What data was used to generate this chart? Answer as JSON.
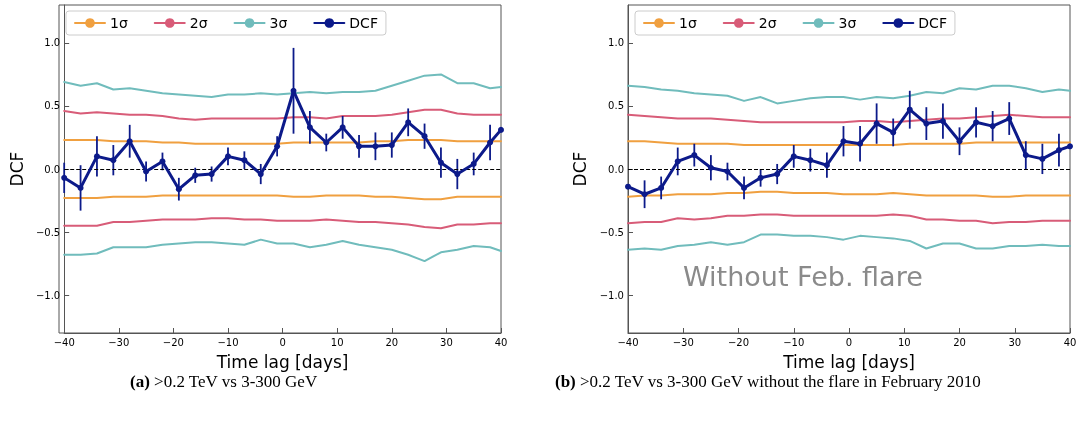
{
  "chart_data": [
    {
      "type": "line",
      "xlabel": "Time lag [days]",
      "ylabel": "DCF",
      "xlim": [
        -40,
        40
      ],
      "ylim": [
        -1.3,
        1.3
      ],
      "xticks": [
        {
          "value": -40,
          "label": "−40"
        },
        {
          "value": -30,
          "label": "−30"
        },
        {
          "value": -20,
          "label": "−20"
        },
        {
          "value": -10,
          "label": "−10"
        },
        0,
        10,
        20,
        30,
        40
      ],
      "yticks": [
        {
          "value": -1,
          "label": "−1.0"
        },
        {
          "value": -0.5,
          "label": "−0.5"
        },
        {
          "value": 0,
          "label": "0.0"
        },
        {
          "value": 0.5,
          "label": "0.5"
        },
        {
          "value": 1,
          "label": "1.0"
        }
      ],
      "grid": false,
      "legend": "top left",
      "ref_lines": [
        {
          "axis": "y",
          "value": 0,
          "color": "#000000",
          "line_style": "dashed"
        }
      ],
      "annotations": [
        "(a) >0.2 TeV vs 3-300 GeV"
      ],
      "x": [
        -40,
        -37,
        -34,
        -31,
        -28,
        -25,
        -22,
        -19,
        -16,
        -13,
        -10,
        -7,
        -4,
        -1,
        2,
        5,
        8,
        11,
        14,
        17,
        20,
        23,
        26,
        29,
        32,
        35,
        38,
        40
      ],
      "series": [
        {
          "name": "1σ",
          "color": "#f0a040",
          "marker": "none",
          "values": [
            0.23,
            0.23,
            0.23,
            0.22,
            0.22,
            0.22,
            0.21,
            0.21,
            0.2,
            0.2,
            0.2,
            0.2,
            0.2,
            0.2,
            0.21,
            0.21,
            0.21,
            0.21,
            0.21,
            0.22,
            0.22,
            0.23,
            0.23,
            0.23,
            0.22,
            0.22,
            0.22,
            0.22
          ]
        },
        {
          "color": "#f0a040",
          "marker": "none",
          "values": [
            -0.23,
            -0.23,
            -0.23,
            -0.22,
            -0.22,
            -0.22,
            -0.21,
            -0.21,
            -0.21,
            -0.21,
            -0.21,
            -0.21,
            -0.21,
            -0.21,
            -0.22,
            -0.22,
            -0.21,
            -0.21,
            -0.21,
            -0.22,
            -0.22,
            -0.23,
            -0.24,
            -0.24,
            -0.22,
            -0.22,
            -0.22,
            -0.22
          ]
        },
        {
          "name": "2σ",
          "color": "#d85c78",
          "marker": "none",
          "values": [
            0.46,
            0.44,
            0.45,
            0.44,
            0.43,
            0.43,
            0.42,
            0.4,
            0.39,
            0.4,
            0.4,
            0.4,
            0.4,
            0.4,
            0.41,
            0.41,
            0.4,
            0.42,
            0.42,
            0.42,
            0.43,
            0.45,
            0.47,
            0.47,
            0.44,
            0.43,
            0.43,
            0.43
          ]
        },
        {
          "color": "#d85c78",
          "marker": "none",
          "values": [
            -0.45,
            -0.45,
            -0.45,
            -0.42,
            -0.42,
            -0.41,
            -0.4,
            -0.4,
            -0.4,
            -0.39,
            -0.39,
            -0.4,
            -0.4,
            -0.41,
            -0.41,
            -0.41,
            -0.4,
            -0.41,
            -0.42,
            -0.42,
            -0.43,
            -0.44,
            -0.46,
            -0.47,
            -0.44,
            -0.44,
            -0.43,
            -0.43
          ]
        },
        {
          "name": "3σ",
          "color": "#70bcbc",
          "marker": "none",
          "values": [
            0.69,
            0.66,
            0.68,
            0.63,
            0.64,
            0.62,
            0.6,
            0.59,
            0.58,
            0.57,
            0.59,
            0.59,
            0.6,
            0.59,
            0.6,
            0.61,
            0.6,
            0.61,
            0.61,
            0.62,
            0.66,
            0.7,
            0.74,
            0.75,
            0.68,
            0.68,
            0.64,
            0.65
          ]
        },
        {
          "color": "#70bcbc",
          "marker": "none",
          "values": [
            -0.68,
            -0.68,
            -0.67,
            -0.62,
            -0.62,
            -0.62,
            -0.6,
            -0.59,
            -0.58,
            -0.58,
            -0.59,
            -0.6,
            -0.56,
            -0.59,
            -0.59,
            -0.62,
            -0.6,
            -0.57,
            -0.6,
            -0.62,
            -0.64,
            -0.68,
            -0.73,
            -0.66,
            -0.64,
            -0.61,
            -0.62,
            -0.65
          ]
        },
        {
          "name": "DCF",
          "color": "#0c1a8a",
          "marker": "circle",
          "values": [
            -0.07,
            -0.15,
            0.1,
            0.07,
            0.22,
            -0.02,
            0.06,
            -0.16,
            -0.05,
            -0.04,
            0.1,
            0.07,
            -0.04,
            0.18,
            0.62,
            0.33,
            0.21,
            0.33,
            0.18,
            0.18,
            0.19,
            0.37,
            0.26,
            0.05,
            -0.04,
            0.04,
            0.21,
            0.31
          ],
          "errors": [
            0.12,
            0.18,
            0.16,
            0.12,
            0.13,
            0.08,
            0.07,
            0.09,
            0.06,
            0.06,
            0.07,
            0.07,
            0.08,
            0.08,
            0.34,
            0.13,
            0.07,
            0.09,
            0.09,
            0.11,
            0.1,
            0.11,
            0.1,
            0.12,
            0.12,
            0.09,
            0.14,
            null
          ]
        }
      ]
    },
    {
      "type": "line",
      "xlabel": "Time lag [days]",
      "ylabel": "DCF",
      "xlim": [
        -40,
        40
      ],
      "ylim": [
        -1.3,
        1.3
      ],
      "xticks": [
        {
          "value": -40,
          "label": "−40"
        },
        {
          "value": -30,
          "label": "−30"
        },
        {
          "value": -20,
          "label": "−20"
        },
        {
          "value": -10,
          "label": "−10"
        },
        0,
        10,
        20,
        30,
        40
      ],
      "yticks": [
        {
          "value": -1,
          "label": "−1.0"
        },
        {
          "value": -0.5,
          "label": "−0.5"
        },
        {
          "value": 0,
          "label": "0.0"
        },
        {
          "value": 0.5,
          "label": "0.5"
        },
        {
          "value": 1,
          "label": "1.0"
        }
      ],
      "grid": false,
      "legend": "top left",
      "ref_lines": [
        {
          "axis": "y",
          "value": 0,
          "color": "#000000",
          "line_style": "dashed"
        }
      ],
      "annotations": [
        "Without Feb. flare",
        "(b) >0.2 TeV vs 3-300 GeV without the flare in February 2010"
      ],
      "x": [
        -40,
        -37,
        -34,
        -31,
        -28,
        -25,
        -22,
        -19,
        -16,
        -13,
        -10,
        -7,
        -4,
        -1,
        2,
        5,
        8,
        11,
        14,
        17,
        20,
        23,
        26,
        29,
        32,
        35,
        38,
        40
      ],
      "series": [
        {
          "name": "1σ",
          "color": "#f0a040",
          "marker": "none",
          "values": [
            0.22,
            0.22,
            0.21,
            0.2,
            0.2,
            0.2,
            0.2,
            0.19,
            0.19,
            0.19,
            0.19,
            0.19,
            0.19,
            0.19,
            0.19,
            0.19,
            0.19,
            0.2,
            0.2,
            0.2,
            0.2,
            0.21,
            0.21,
            0.21,
            0.21,
            0.21,
            0.21,
            0.21
          ]
        },
        {
          "color": "#f0a040",
          "marker": "none",
          "values": [
            -0.22,
            -0.21,
            -0.21,
            -0.2,
            -0.2,
            -0.2,
            -0.19,
            -0.19,
            -0.18,
            -0.18,
            -0.19,
            -0.19,
            -0.19,
            -0.2,
            -0.2,
            -0.2,
            -0.19,
            -0.2,
            -0.21,
            -0.21,
            -0.21,
            -0.21,
            -0.22,
            -0.22,
            -0.21,
            -0.21,
            -0.21,
            -0.21
          ]
        },
        {
          "name": "2σ",
          "color": "#d85c78",
          "marker": "none",
          "values": [
            0.43,
            0.42,
            0.41,
            0.4,
            0.4,
            0.4,
            0.39,
            0.38,
            0.37,
            0.37,
            0.37,
            0.37,
            0.37,
            0.37,
            0.38,
            0.38,
            0.37,
            0.38,
            0.39,
            0.4,
            0.4,
            0.41,
            0.42,
            0.43,
            0.42,
            0.41,
            0.41,
            0.41
          ]
        },
        {
          "color": "#d85c78",
          "marker": "none",
          "values": [
            -0.43,
            -0.42,
            -0.42,
            -0.39,
            -0.4,
            -0.39,
            -0.37,
            -0.37,
            -0.36,
            -0.36,
            -0.37,
            -0.37,
            -0.37,
            -0.37,
            -0.37,
            -0.37,
            -0.36,
            -0.37,
            -0.4,
            -0.4,
            -0.41,
            -0.41,
            -0.43,
            -0.42,
            -0.42,
            -0.41,
            -0.41,
            -0.41
          ]
        },
        {
          "name": "3σ",
          "color": "#70bcbc",
          "marker": "none",
          "values": [
            0.66,
            0.65,
            0.63,
            0.62,
            0.6,
            0.59,
            0.58,
            0.54,
            0.57,
            0.52,
            0.54,
            0.56,
            0.57,
            0.57,
            0.55,
            0.57,
            0.56,
            0.58,
            0.61,
            0.6,
            0.64,
            0.63,
            0.66,
            0.66,
            0.64,
            0.61,
            0.63,
            0.62
          ]
        },
        {
          "color": "#70bcbc",
          "marker": "none",
          "values": [
            -0.64,
            -0.63,
            -0.64,
            -0.61,
            -0.6,
            -0.58,
            -0.6,
            -0.58,
            -0.52,
            -0.52,
            -0.53,
            -0.53,
            -0.54,
            -0.56,
            -0.53,
            -0.54,
            -0.55,
            -0.57,
            -0.63,
            -0.59,
            -0.59,
            -0.63,
            -0.63,
            -0.61,
            -0.61,
            -0.6,
            -0.61,
            -0.61
          ]
        },
        {
          "name": "DCF",
          "color": "#0c1a8a",
          "marker": "circle",
          "values": [
            -0.14,
            -0.2,
            -0.15,
            0.06,
            0.11,
            0.01,
            -0.02,
            -0.15,
            -0.07,
            -0.04,
            0.1,
            0.07,
            0.03,
            0.22,
            0.2,
            0.36,
            0.29,
            0.47,
            0.36,
            0.38,
            0.22,
            0.37,
            0.34,
            0.4,
            0.11,
            0.08,
            0.15,
            0.18
          ],
          "errors": [
            null,
            0.11,
            0.09,
            0.11,
            0.09,
            0.1,
            0.07,
            0.09,
            0.07,
            0.08,
            0.09,
            0.09,
            0.1,
            0.12,
            0.14,
            0.16,
            0.11,
            0.15,
            0.13,
            0.14,
            0.11,
            0.12,
            0.12,
            0.13,
            0.11,
            0.12,
            0.13,
            null
          ]
        }
      ]
    }
  ]
}
